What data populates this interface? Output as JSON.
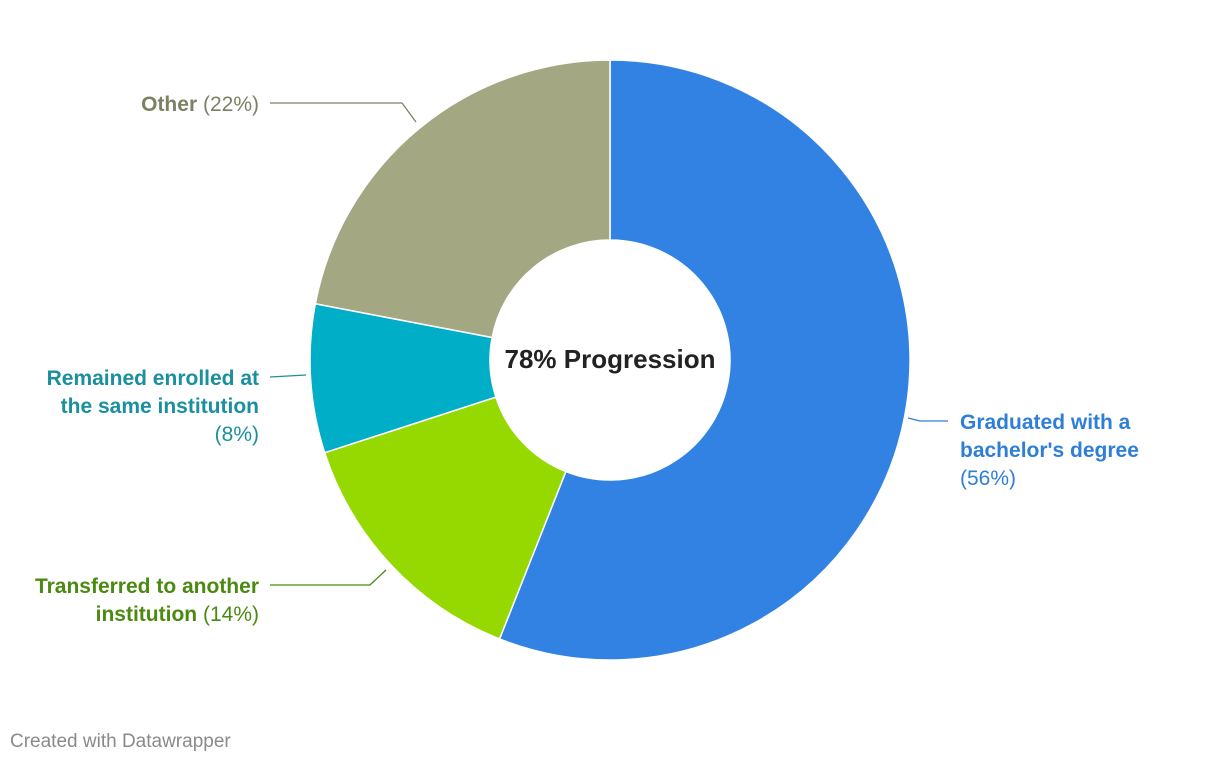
{
  "chart_data": {
    "type": "pie",
    "donut": true,
    "center_label": "78% Progression",
    "slices": [
      {
        "label_lines": [
          "Graduated with a",
          "bachelor's degree"
        ],
        "value": 56,
        "value_label": "(56%)",
        "color": "#3182e2",
        "label_color": "#2f7fd9"
      },
      {
        "label_lines": [
          "Transferred to another",
          "institution"
        ],
        "value": 14,
        "value_label": "(14%)",
        "color": "#96d900",
        "label_color": "#4a8a10"
      },
      {
        "label_lines": [
          "Remained enrolled at",
          "the same institution"
        ],
        "value": 8,
        "value_label": "(8%)",
        "color": "#00aec7",
        "label_color": "#1a8f9e"
      },
      {
        "label_lines": [
          "Other"
        ],
        "value": 22,
        "value_label": "(22%)",
        "color": "#a3a883",
        "label_color": "#7d8063"
      }
    ]
  },
  "footer": {
    "credit": "Created with Datawrapper"
  }
}
